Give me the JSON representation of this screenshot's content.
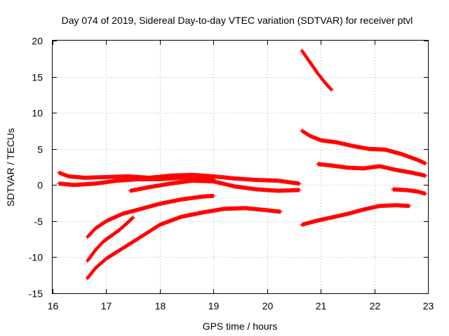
{
  "chart_data": {
    "type": "scatter",
    "title": "Day 074 of 2019, Sidereal Day-to-day VTEC variation (SDTVAR) for receiver ptvl",
    "xlabel": "GPS time / hours",
    "ylabel": "SDTVAR / TECUs",
    "xlim": [
      16,
      23
    ],
    "ylim": [
      -15,
      20
    ],
    "xticks": [
      16,
      17,
      18,
      19,
      20,
      21,
      22,
      23
    ],
    "yticks": [
      -15,
      -10,
      -5,
      0,
      5,
      10,
      15,
      20
    ],
    "xtick_labels": [
      "16",
      "17",
      "18",
      "19",
      "20",
      "21",
      "22",
      "23"
    ],
    "ytick_labels": [
      "-15",
      "-10",
      "-5",
      "0",
      "5",
      "10",
      "15",
      "20"
    ],
    "grid": true,
    "marker": "+",
    "color": "#ff0000",
    "series": [
      {
        "name": "track-1",
        "points": [
          [
            16.12,
            1.7
          ],
          [
            16.3,
            1.2
          ],
          [
            16.6,
            1.0
          ],
          [
            17.0,
            1.1
          ],
          [
            17.4,
            1.2
          ],
          [
            17.8,
            1.0
          ],
          [
            18.2,
            1.3
          ],
          [
            18.6,
            1.4
          ],
          [
            19.0,
            1.2
          ],
          [
            19.4,
            0.9
          ],
          [
            19.8,
            0.7
          ],
          [
            20.2,
            0.6
          ],
          [
            20.6,
            0.2
          ]
        ]
      },
      {
        "name": "track-2",
        "points": [
          [
            16.12,
            0.2
          ],
          [
            16.4,
            0.0
          ],
          [
            16.8,
            0.2
          ],
          [
            17.2,
            0.6
          ],
          [
            17.6,
            0.8
          ],
          [
            18.0,
            0.8
          ],
          [
            18.4,
            1.0
          ],
          [
            18.8,
            0.9
          ],
          [
            19.0,
            0.8
          ]
        ]
      },
      {
        "name": "track-3",
        "points": [
          [
            17.45,
            -0.8
          ],
          [
            17.8,
            -0.3
          ],
          [
            18.2,
            0.2
          ],
          [
            18.6,
            0.6
          ],
          [
            19.0,
            0.5
          ],
          [
            19.4,
            -0.2
          ],
          [
            19.8,
            -0.6
          ],
          [
            20.2,
            -0.8
          ],
          [
            20.6,
            -0.7
          ]
        ]
      },
      {
        "name": "track-4",
        "points": [
          [
            16.65,
            -7.2
          ],
          [
            16.8,
            -6.0
          ],
          [
            17.0,
            -5.0
          ],
          [
            17.3,
            -4.0
          ],
          [
            17.6,
            -3.4
          ],
          [
            18.0,
            -2.6
          ],
          [
            18.4,
            -2.0
          ],
          [
            18.8,
            -1.6
          ],
          [
            19.0,
            -1.5
          ]
        ]
      },
      {
        "name": "track-5",
        "points": [
          [
            16.65,
            -10.5
          ],
          [
            16.8,
            -9.0
          ],
          [
            16.95,
            -7.8
          ],
          [
            17.1,
            -7.0
          ],
          [
            17.25,
            -6.2
          ],
          [
            17.4,
            -5.2
          ],
          [
            17.5,
            -4.5
          ]
        ]
      },
      {
        "name": "track-6",
        "points": [
          [
            16.65,
            -12.9
          ],
          [
            16.8,
            -11.5
          ],
          [
            17.0,
            -10.2
          ],
          [
            17.3,
            -8.8
          ],
          [
            17.6,
            -7.4
          ],
          [
            18.0,
            -5.5
          ],
          [
            18.4,
            -4.4
          ],
          [
            18.8,
            -3.8
          ],
          [
            19.2,
            -3.3
          ],
          [
            19.6,
            -3.2
          ],
          [
            20.0,
            -3.5
          ],
          [
            20.25,
            -3.7
          ]
        ]
      },
      {
        "name": "track-7",
        "points": [
          [
            20.65,
            18.6
          ],
          [
            20.8,
            17.0
          ],
          [
            20.95,
            15.4
          ],
          [
            21.1,
            14.0
          ],
          [
            21.2,
            13.2
          ]
        ]
      },
      {
        "name": "track-8",
        "points": [
          [
            20.65,
            7.5
          ],
          [
            20.8,
            6.8
          ],
          [
            21.0,
            6.2
          ],
          [
            21.3,
            5.9
          ],
          [
            21.6,
            5.4
          ],
          [
            21.9,
            5.0
          ],
          [
            22.2,
            4.9
          ],
          [
            22.5,
            4.3
          ],
          [
            22.8,
            3.5
          ],
          [
            22.95,
            3.0
          ]
        ]
      },
      {
        "name": "track-9",
        "points": [
          [
            20.95,
            2.9
          ],
          [
            21.2,
            2.7
          ],
          [
            21.5,
            2.4
          ],
          [
            21.8,
            2.3
          ],
          [
            22.1,
            2.6
          ],
          [
            22.4,
            2.1
          ],
          [
            22.7,
            1.7
          ],
          [
            22.95,
            1.3
          ]
        ]
      },
      {
        "name": "track-10",
        "points": [
          [
            22.35,
            -0.6
          ],
          [
            22.6,
            -0.7
          ],
          [
            22.8,
            -0.9
          ],
          [
            22.95,
            -1.2
          ]
        ]
      },
      {
        "name": "track-11",
        "points": [
          [
            20.65,
            -5.5
          ],
          [
            20.9,
            -5.0
          ],
          [
            21.2,
            -4.5
          ],
          [
            21.5,
            -4.0
          ],
          [
            21.8,
            -3.4
          ],
          [
            22.1,
            -2.9
          ],
          [
            22.4,
            -2.8
          ],
          [
            22.65,
            -2.9
          ]
        ]
      }
    ]
  }
}
